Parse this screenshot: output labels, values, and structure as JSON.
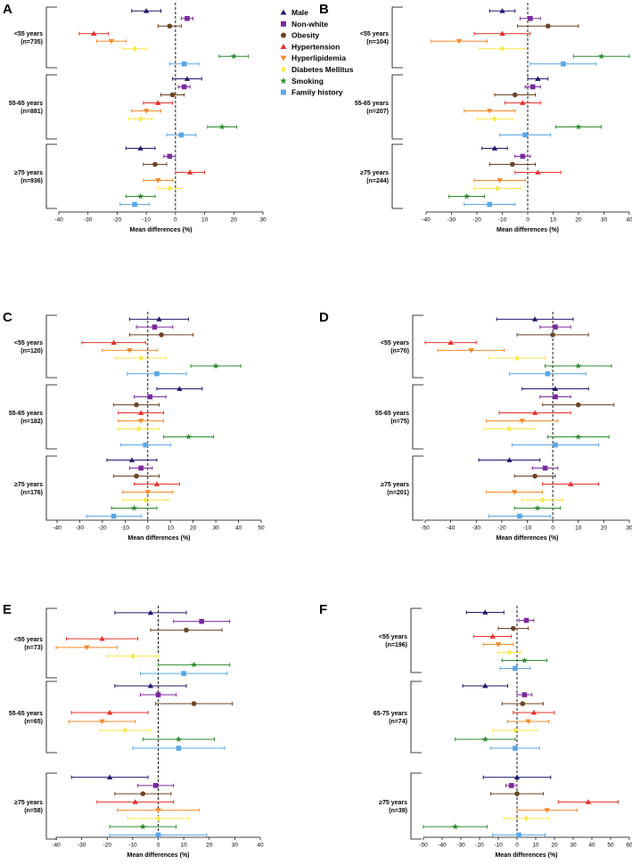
{
  "figure": {
    "x_axis_label": "Mean differences (%)",
    "legend": [
      {
        "name": "Male",
        "color": "#1F1A6E",
        "marker": "triangle-up"
      },
      {
        "name": "Non-white",
        "color": "#7B2A9E",
        "marker": "square"
      },
      {
        "name": "Obesity",
        "color": "#6B4423",
        "marker": "circle"
      },
      {
        "name": "Hypertension",
        "color": "#E8302A",
        "marker": "triangle-up"
      },
      {
        "name": "Hyperlipidemia",
        "color": "#F5892A",
        "marker": "triangle-down"
      },
      {
        "name": "Diabetes Mellitus",
        "color": "#F8E84A",
        "marker": "diamond"
      },
      {
        "name": "Smoking",
        "color": "#2E8B2E",
        "marker": "star"
      },
      {
        "name": "Family history",
        "color": "#5AA6E6",
        "marker": "square"
      }
    ]
  },
  "chart_data": [
    {
      "type": "forest",
      "panel": "A",
      "xlabel": "Mean differences (%)",
      "xlim": [
        -40,
        30
      ],
      "xticks": [
        -40,
        -30,
        -20,
        -10,
        0,
        10,
        20,
        30
      ],
      "series": [
        "Male",
        "Non-white",
        "Obesity",
        "Hypertension",
        "Hyperlipidemia",
        "Diabetes Mellitus",
        "Smoking",
        "Family history"
      ],
      "groups": [
        {
          "label": "<55 years",
          "n": "(n=735)",
          "estimates": [
            -10,
            4,
            -2,
            -28,
            -22,
            -14,
            20,
            3
          ],
          "lower": [
            -15,
            2,
            -6,
            -33,
            -27,
            -18,
            15,
            -2
          ],
          "upper": [
            -5,
            6,
            2,
            -23,
            -17,
            -10,
            25,
            8
          ]
        },
        {
          "label": "55-65 years",
          "n": "(n=881)",
          "estimates": [
            4,
            3,
            -1,
            -6,
            -10,
            -12,
            16,
            2
          ],
          "lower": [
            -1,
            1,
            -5,
            -11,
            -15,
            -16,
            11,
            -3
          ],
          "upper": [
            9,
            5,
            3,
            -1,
            -5,
            -8,
            21,
            7
          ]
        },
        {
          "label": "≥75 years",
          "n": "(n=936)",
          "estimates": [
            -12,
            -2,
            -7,
            5,
            -6,
            -2,
            -12,
            -14
          ],
          "lower": [
            -17,
            -4,
            -11,
            0,
            -11,
            -6,
            -17,
            -19
          ],
          "upper": [
            -7,
            0,
            -3,
            10,
            -1,
            2,
            -7,
            -9
          ]
        }
      ]
    },
    {
      "type": "forest",
      "panel": "B",
      "xlabel": "Mean differences (%)",
      "xlim": [
        -40,
        40
      ],
      "xticks": [
        -40,
        -30,
        -20,
        -10,
        0,
        10,
        20,
        30,
        40
      ],
      "series": [
        "Male",
        "Non-white",
        "Obesity",
        "Hypertension",
        "Hyperlipidemia",
        "Diabetes Mellitus",
        "Smoking",
        "Family history"
      ],
      "groups": [
        {
          "label": "<55 years",
          "n": "(n=104)",
          "estimates": [
            -10,
            1,
            8,
            -10,
            -27,
            -10,
            29,
            14
          ],
          "lower": [
            -15,
            -3,
            -4,
            -21,
            -38,
            -19,
            18,
            1
          ],
          "upper": [
            -5,
            5,
            20,
            1,
            -16,
            -1,
            40,
            27
          ]
        },
        {
          "label": "55-65 years",
          "n": "(n=207)",
          "estimates": [
            4,
            2,
            -5,
            -2,
            -15,
            -13,
            20,
            -1
          ],
          "lower": [
            0,
            -1,
            -13,
            -9,
            -25,
            -20,
            11,
            -11
          ],
          "upper": [
            8,
            5,
            3,
            5,
            -5,
            -6,
            29,
            9
          ]
        },
        {
          "label": "≥75 years",
          "n": "(n=244)",
          "estimates": [
            -13,
            -2,
            -6,
            4,
            -11,
            -12,
            -24,
            -15
          ],
          "lower": [
            -18,
            -5,
            -15,
            -5,
            -21,
            -21,
            -31,
            -25
          ],
          "upper": [
            -8,
            1,
            3,
            13,
            -1,
            -3,
            -17,
            -5
          ]
        }
      ]
    },
    {
      "type": "forest",
      "panel": "C",
      "xlabel": "Mean differences (%)",
      "xlim": [
        -40,
        50
      ],
      "xticks": [
        -40,
        -30,
        -20,
        -10,
        0,
        10,
        20,
        30,
        40,
        50
      ],
      "series": [
        "Male",
        "Non-white",
        "Obesity",
        "Hypertension",
        "Hyperlipidemia",
        "Diabetes Mellitus",
        "Smoking",
        "Family history"
      ],
      "groups": [
        {
          "label": "<55 years",
          "n": "(n=120)",
          "estimates": [
            5,
            3,
            6,
            -15,
            -8,
            -3,
            30,
            4
          ],
          "lower": [
            -8,
            -5,
            -8,
            -29,
            -20,
            -14,
            19,
            -9
          ],
          "upper": [
            18,
            11,
            20,
            -1,
            4,
            8,
            41,
            17
          ]
        },
        {
          "label": "55-65 years",
          "n": "(n=182)",
          "estimates": [
            14,
            1,
            -5,
            -3,
            -3,
            -4,
            18,
            -1
          ],
          "lower": [
            4,
            -6,
            -15,
            -13,
            -13,
            -13,
            7,
            -12
          ],
          "upper": [
            24,
            8,
            5,
            7,
            7,
            5,
            29,
            10
          ]
        },
        {
          "label": "≥75 years",
          "n": "(n=176)",
          "estimates": [
            -7,
            -3,
            -5,
            4,
            0,
            -1,
            -6,
            -15
          ],
          "lower": [
            -18,
            -8,
            -15,
            -6,
            -11,
            -11,
            -16,
            -27
          ],
          "upper": [
            4,
            2,
            5,
            14,
            11,
            9,
            4,
            -3
          ]
        }
      ]
    },
    {
      "type": "forest",
      "panel": "D",
      "xlabel": "Mean differences (%)",
      "xlim": [
        -50,
        30
      ],
      "xticks": [
        -50,
        -40,
        -30,
        -20,
        -10,
        0,
        10,
        20,
        30
      ],
      "series": [
        "Male",
        "Non-white",
        "Obesity",
        "Hypertension",
        "Hyperlipidemia",
        "Diabetes Mellitus",
        "Smoking",
        "Family history"
      ],
      "groups": [
        {
          "label": "<55 years",
          "n": "(n=70)",
          "estimates": [
            -7,
            1,
            0,
            -40,
            -32,
            -14,
            10,
            -2
          ],
          "lower": [
            -22,
            -5,
            -14,
            -50,
            -45,
            -25,
            -3,
            -17
          ],
          "upper": [
            8,
            7,
            14,
            -30,
            -19,
            -3,
            23,
            13
          ]
        },
        {
          "label": "55-65 years",
          "n": "(n=75)",
          "estimates": [
            1,
            1,
            10,
            -7,
            -12,
            -17,
            10,
            1
          ],
          "lower": [
            -12,
            -5,
            -4,
            -21,
            -26,
            -27,
            -2,
            -16
          ],
          "upper": [
            14,
            7,
            24,
            7,
            2,
            -7,
            22,
            18
          ]
        },
        {
          "label": "≥75 years",
          "n": "(n=201)",
          "estimates": [
            -17,
            -3,
            -7,
            7,
            -15,
            -4,
            -6,
            -13
          ],
          "lower": [
            -29,
            -8,
            -15,
            -4,
            -26,
            -12,
            -15,
            -25
          ],
          "upper": [
            -5,
            2,
            1,
            18,
            -4,
            4,
            3,
            -1
          ]
        }
      ]
    },
    {
      "type": "forest",
      "panel": "E",
      "xlabel": "Mean differences (%)",
      "xlim": [
        -40,
        40
      ],
      "xticks": [
        -40,
        -30,
        -20,
        -10,
        0,
        10,
        20,
        30,
        40
      ],
      "series": [
        "Male",
        "Non-white",
        "Obesity",
        "Hypertension",
        "Hyperlipidemia",
        "Diabetes Mellitus",
        "Smoking",
        "Family history"
      ],
      "groups": [
        {
          "label": "<55 years",
          "n": "(n=73)",
          "estimates": [
            -3,
            17,
            11,
            -22,
            -28,
            -10,
            14,
            10
          ],
          "lower": [
            -17,
            6,
            -3,
            -36,
            -40,
            -20,
            0,
            -7
          ],
          "upper": [
            11,
            28,
            25,
            -8,
            -16,
            0,
            28,
            27
          ]
        },
        {
          "label": "55-65 years",
          "n": "(n=65)",
          "estimates": [
            -3,
            0,
            14,
            -19,
            -22,
            -13,
            8,
            8
          ],
          "lower": [
            -17,
            -7,
            -1,
            -34,
            -35,
            -23,
            -6,
            -10
          ],
          "upper": [
            11,
            7,
            29,
            -4,
            -9,
            -3,
            22,
            26
          ]
        },
        {
          "label": "≥75 years",
          "n": "(n=58)",
          "estimates": [
            -19,
            -1,
            -6,
            -9,
            0,
            0,
            -6,
            0
          ],
          "lower": [
            -34,
            -8,
            -17,
            -24,
            -16,
            -12,
            -19,
            -19
          ],
          "upper": [
            -4,
            6,
            5,
            6,
            16,
            12,
            7,
            19
          ]
        }
      ]
    },
    {
      "type": "forest",
      "panel": "F",
      "xlabel": "Mean differences (%)",
      "xlim": [
        -50,
        60
      ],
      "xticks": [
        -50,
        -40,
        -30,
        -20,
        -10,
        0,
        10,
        20,
        30,
        40,
        50,
        60
      ],
      "series": [
        "Male",
        "Non-white",
        "Obesity",
        "Hypertension",
        "Hyperlipidemia",
        "Diabetes Mellitus",
        "Smoking",
        "Family history"
      ],
      "groups": [
        {
          "label": "<55 years",
          "n": "(n=196)",
          "estimates": [
            -17,
            5,
            -2,
            -13,
            -10,
            -4,
            4,
            -1
          ],
          "lower": [
            -27,
            1,
            -10,
            -23,
            -18,
            -10,
            -8,
            -9
          ],
          "upper": [
            -7,
            9,
            6,
            -3,
            -2,
            2,
            16,
            7
          ]
        },
        {
          "label": "65-75 years",
          "n": "(n=74)",
          "estimates": [
            -17,
            4,
            3,
            9,
            6,
            -1,
            -17,
            -1
          ],
          "lower": [
            -29,
            0,
            -8,
            -2,
            -5,
            -13,
            -33,
            -14
          ],
          "upper": [
            -5,
            8,
            14,
            20,
            17,
            11,
            -1,
            12
          ]
        },
        {
          "label": "≥75 years",
          "n": "(n=39)",
          "estimates": [
            0,
            -3,
            0,
            38,
            16,
            5,
            -33,
            1
          ],
          "lower": [
            -18,
            -6,
            -14,
            22,
            0,
            -7,
            -50,
            -13
          ],
          "upper": [
            18,
            0,
            14,
            54,
            32,
            17,
            -16,
            15
          ]
        }
      ]
    }
  ]
}
